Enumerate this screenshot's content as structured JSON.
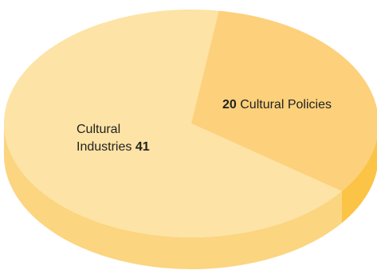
{
  "chart_data": {
    "type": "pie",
    "style": "3d",
    "slices": [
      {
        "label": "Cultural Industries",
        "label_line1": "Cultural",
        "label_line2": "Industries",
        "value": 41,
        "value_text": "41",
        "color": "#fde3a5",
        "side_color": "#fbd57f"
      },
      {
        "label": "Cultural Policies",
        "value": 20,
        "value_text": "20",
        "color": "#fdd07b",
        "side_color": "#fcc446"
      }
    ]
  }
}
